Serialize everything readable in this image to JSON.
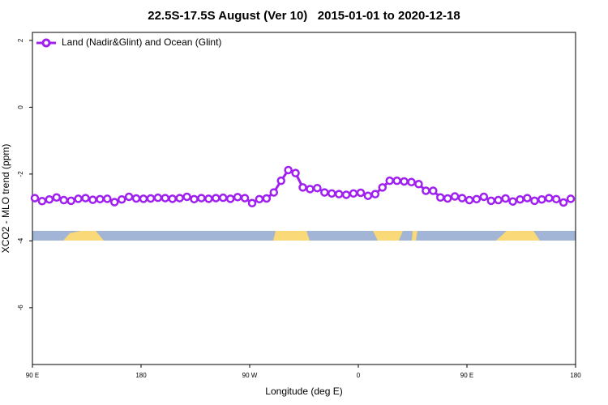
{
  "chart_data": {
    "type": "line",
    "title": "22.5S-17.5S August (Ver 10)   2015-01-01 to 2020-12-18",
    "x_label": "Longitude (deg E)",
    "y_label": "XCO2 - MLO trend (ppm)",
    "xlim": [
      90,
      540
    ],
    "ylim": [
      -7.7,
      2.24
    ],
    "xticks": [
      {
        "value": 90,
        "label": "90 E"
      },
      180,
      {
        "value": 270,
        "label": "90 W"
      },
      {
        "value": 360,
        "label": "0"
      },
      {
        "value": 450,
        "label": "90 E"
      },
      {
        "value": 540,
        "label": "180"
      }
    ],
    "yticks": [
      2,
      0,
      -2,
      -4,
      -6
    ],
    "legend": "top-left",
    "x": [
      92,
      98,
      104,
      110,
      116,
      122,
      128,
      134,
      140,
      146,
      152,
      158,
      164,
      170,
      176,
      182,
      188,
      194,
      200,
      206,
      212,
      218,
      224,
      230,
      236,
      242,
      248,
      254,
      260,
      266,
      272,
      278,
      284,
      290,
      296,
      302,
      308,
      314,
      320,
      326,
      332,
      338,
      344,
      350,
      356,
      362,
      368,
      374,
      380,
      386,
      392,
      398,
      404,
      410,
      416,
      422,
      428,
      434,
      440,
      446,
      452,
      458,
      464,
      470,
      476,
      482,
      488,
      494,
      500,
      506,
      512,
      518,
      524,
      530,
      536
    ],
    "series": [
      {
        "name": "Land (Nadir&Glint) and Ocean (Glint)",
        "color": "#a020f0",
        "values": [
          -2.72,
          -2.81,
          -2.76,
          -2.7,
          -2.78,
          -2.8,
          -2.74,
          -2.72,
          -2.77,
          -2.75,
          -2.74,
          -2.84,
          -2.76,
          -2.68,
          -2.73,
          -2.74,
          -2.73,
          -2.71,
          -2.72,
          -2.74,
          -2.72,
          -2.68,
          -2.75,
          -2.72,
          -2.74,
          -2.72,
          -2.71,
          -2.74,
          -2.69,
          -2.72,
          -2.87,
          -2.75,
          -2.73,
          -2.55,
          -2.2,
          -1.88,
          -1.97,
          -2.4,
          -2.45,
          -2.42,
          -2.55,
          -2.58,
          -2.6,
          -2.62,
          -2.58,
          -2.56,
          -2.65,
          -2.6,
          -2.4,
          -2.2,
          -2.2,
          -2.22,
          -2.24,
          -2.3,
          -2.5,
          -2.5,
          -2.7,
          -2.73,
          -2.67,
          -2.72,
          -2.78,
          -2.75,
          -2.68,
          -2.8,
          -2.78,
          -2.73,
          -2.82,
          -2.76,
          -2.72,
          -2.8,
          -2.76,
          -2.72,
          -2.75,
          -2.85,
          -2.74
        ]
      }
    ]
  }
}
